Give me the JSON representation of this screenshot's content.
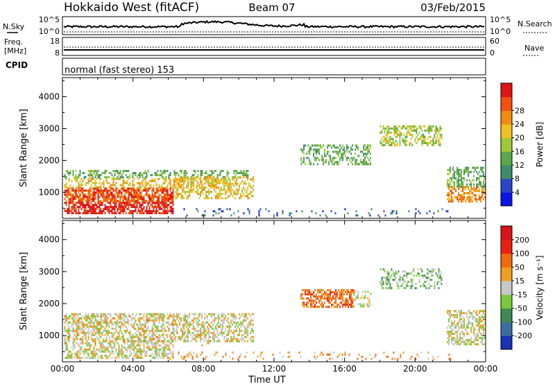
{
  "header": {
    "station": "Hokkaido West (fitACF)",
    "beam": "Beam 07",
    "date": "03/Feb/2015"
  },
  "strip": {
    "nsky_label": "N.Sky",
    "nsky_ticks": [
      "10^5",
      "10^0"
    ],
    "nsearch_label": "N.Search",
    "nsearch_ticks": [
      "10^5",
      "10^0"
    ],
    "freq_label_line1": "Freq.",
    "freq_label_line2": "[MHz]",
    "freq_ticks": [
      "18",
      "8"
    ],
    "nave_label": "Nave",
    "nave_ticks": [
      "60",
      "0"
    ],
    "cpid_label": "CPID",
    "cpid_text": "normal (fast stereo) 153"
  },
  "chart_data": [
    {
      "type": "heatmap",
      "panel": "power",
      "ylabel": "Slant Range [km]",
      "xlabel": "",
      "x_ticks": [
        "00:00",
        "04:00",
        "08:00",
        "12:00",
        "16:00",
        "20:00",
        "00:00"
      ],
      "x_hours": [
        0,
        4,
        8,
        12,
        16,
        20,
        24
      ],
      "ylim": [
        180,
        4600
      ],
      "y_ticks": [
        1000,
        2000,
        3000,
        4000
      ],
      "colorbar": {
        "label": "Power [dB]",
        "ticks": [
          "4",
          "8",
          "12",
          "16",
          "20",
          "24",
          "28"
        ],
        "colors": [
          "#0a14e6",
          "#2a46c8",
          "#3e8a6c",
          "#5ba84a",
          "#a0c838",
          "#f0c020",
          "#f08a10",
          "#f05010",
          "#e01414"
        ]
      },
      "regions": [
        {
          "t0": 0.1,
          "t1": 6.3,
          "r0": 330,
          "r1": 700,
          "level": 8,
          "density": 0.7
        },
        {
          "t0": 0.1,
          "t1": 6.3,
          "r0": 700,
          "r1": 1150,
          "level": 7,
          "density": 0.75
        },
        {
          "t0": 0.1,
          "t1": 9.5,
          "r0": 1150,
          "r1": 1450,
          "level": 5,
          "density": 0.45
        },
        {
          "t0": 0.1,
          "t1": 10.5,
          "r0": 1450,
          "r1": 1700,
          "level": 3,
          "density": 0.45
        },
        {
          "t0": 6.3,
          "t1": 10.8,
          "r0": 800,
          "r1": 1500,
          "level": 5,
          "density": 0.45
        },
        {
          "t0": 13.5,
          "t1": 17.5,
          "r0": 1900,
          "r1": 2500,
          "level": 3,
          "density": 0.45
        },
        {
          "t0": 18.0,
          "t1": 21.5,
          "r0": 2500,
          "r1": 3100,
          "level": 4,
          "density": 0.5
        },
        {
          "t0": 21.8,
          "t1": 24.0,
          "r0": 700,
          "r1": 1200,
          "level": 6,
          "density": 0.6
        },
        {
          "t0": 21.8,
          "t1": 24.0,
          "r0": 1200,
          "r1": 1800,
          "level": 3,
          "density": 0.45
        },
        {
          "t0": 6.0,
          "t1": 22.0,
          "r0": 250,
          "r1": 500,
          "level": 1,
          "density": 0.12
        }
      ]
    },
    {
      "type": "heatmap",
      "panel": "velocity",
      "ylabel": "Slant Range [km]",
      "xlabel": "Time UT",
      "x_ticks": [
        "00:00",
        "04:00",
        "08:00",
        "12:00",
        "16:00",
        "20:00",
        "00:00"
      ],
      "x_hours": [
        0,
        4,
        8,
        12,
        16,
        20,
        24
      ],
      "ylim": [
        180,
        4600
      ],
      "y_ticks": [
        1000,
        2000,
        3000,
        4000
      ],
      "colorbar": {
        "label": "Velocity [m s⁻¹]",
        "ticks": [
          "200",
          "100",
          "50",
          "15",
          "-15",
          "-50",
          "-100",
          "-200"
        ],
        "colors": [
          "#1a32b4",
          "#3c6ea0",
          "#3e8a50",
          "#7cc83c",
          "#c8c8c8",
          "#f0a020",
          "#f06a10",
          "#e82010",
          "#d8141a"
        ]
      },
      "regions": [
        {
          "t0": 0.1,
          "t1": 6.3,
          "r0": 330,
          "r1": 1700,
          "level": 4,
          "density": 0.55
        },
        {
          "t0": 6.3,
          "t1": 10.8,
          "r0": 800,
          "r1": 1700,
          "level": 4,
          "density": 0.5
        },
        {
          "t0": 13.5,
          "t1": 16.5,
          "r0": 1900,
          "r1": 2450,
          "level": 6,
          "density": 0.6
        },
        {
          "t0": 16.5,
          "t1": 17.5,
          "r0": 1900,
          "r1": 2400,
          "level": 4,
          "density": 0.4
        },
        {
          "t0": 18.0,
          "t1": 21.5,
          "r0": 2500,
          "r1": 3100,
          "level": 3,
          "density": 0.4
        },
        {
          "t0": 21.8,
          "t1": 24.0,
          "r0": 700,
          "r1": 1800,
          "level": 4,
          "density": 0.55
        },
        {
          "t0": 0.1,
          "t1": 10.0,
          "r0": 700,
          "r1": 1700,
          "level": 5,
          "density": 0.08
        },
        {
          "t0": 6.0,
          "t1": 22.0,
          "r0": 250,
          "r1": 500,
          "level": 5,
          "density": 0.12
        }
      ]
    }
  ]
}
